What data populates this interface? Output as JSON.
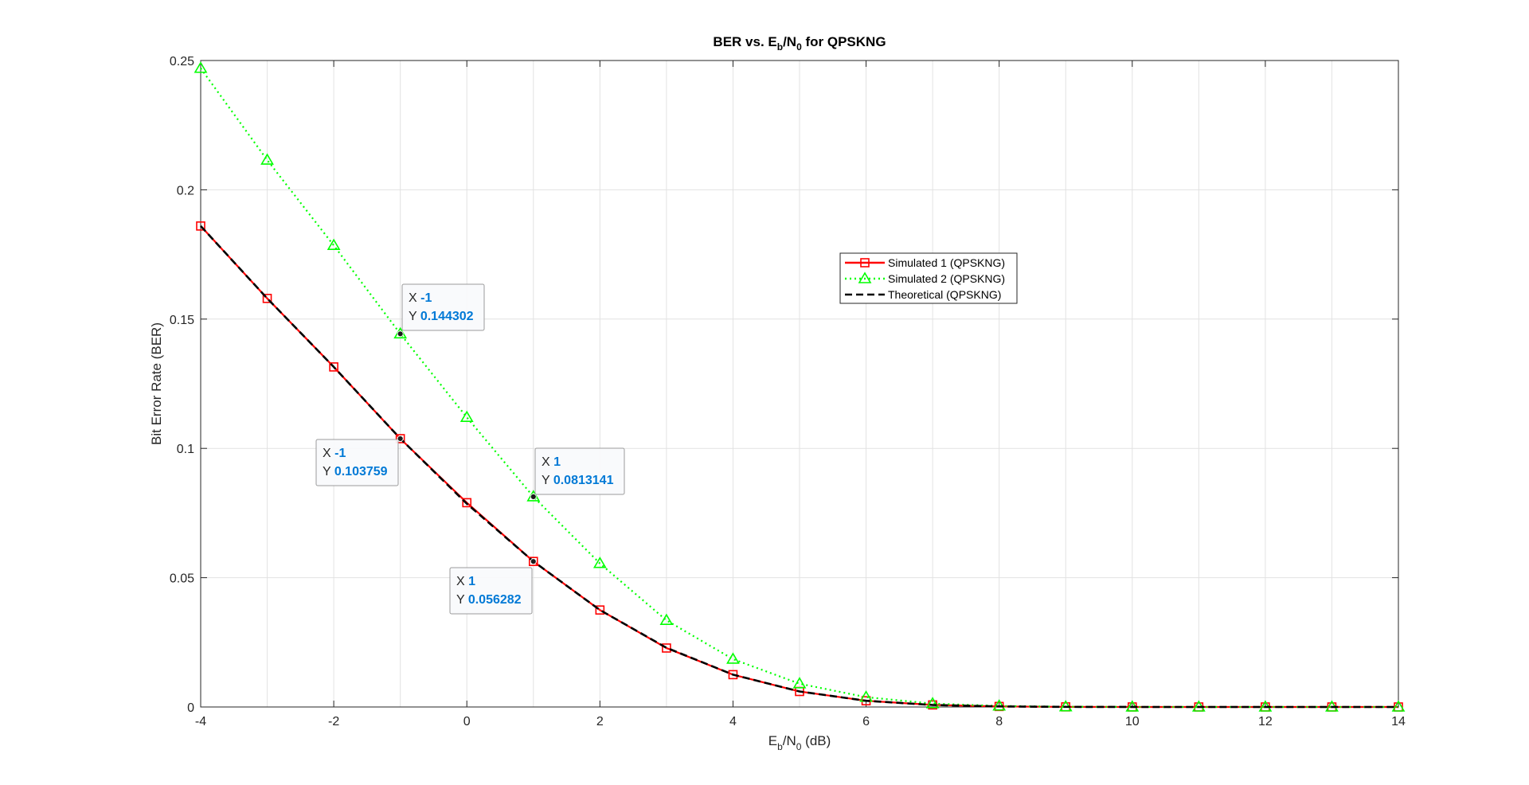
{
  "chart_data": {
    "type": "line",
    "title": {
      "main": "BER vs. E",
      "sub1": "b",
      "mid": "/N",
      "sub2": "0",
      "end": " for QPSKNG"
    },
    "xlabel": {
      "main": "E",
      "sub1": "b",
      "mid": "/N",
      "sub2": "0",
      "end": " (dB)"
    },
    "ylabel": "Bit Error Rate (BER)",
    "xlim": [
      -4,
      14
    ],
    "ylim": [
      0,
      0.25
    ],
    "xticks": [
      -4,
      -2,
      0,
      2,
      4,
      6,
      8,
      10,
      12,
      14
    ],
    "xtick_labels": [
      "-4",
      "-2",
      "0",
      "2",
      "4",
      "6",
      "8",
      "10",
      "12",
      "14"
    ],
    "yticks": [
      0,
      0.05,
      0.1,
      0.15,
      0.2,
      0.25
    ],
    "ytick_labels": [
      "0",
      "0.05",
      "0.1",
      "0.15",
      "0.2",
      "0.25"
    ],
    "grid": true,
    "legend_position": "right-center",
    "x": [
      -4,
      -3,
      -2,
      -1,
      0,
      1,
      2,
      3,
      4,
      5,
      6,
      7,
      8,
      9,
      10,
      11,
      12,
      13,
      14
    ],
    "series": [
      {
        "name": "Simulated 1 (QPSKNG)",
        "color": "#ff0000",
        "line_style": "solid",
        "marker": "square",
        "values": [
          0.186,
          0.158,
          0.1315,
          0.103759,
          0.079,
          0.056282,
          0.0375,
          0.0228,
          0.0125,
          0.006,
          0.0024,
          0.0008,
          0.0002,
          4e-05,
          1e-05,
          0,
          0,
          0,
          0
        ]
      },
      {
        "name": "Simulated 2 (QPSKNG)",
        "color": "#00ff00",
        "line_style": "dotted",
        "marker": "triangle",
        "values": [
          0.247,
          0.2115,
          0.1785,
          0.144302,
          0.112,
          0.0813141,
          0.0555,
          0.0335,
          0.0185,
          0.009,
          0.0038,
          0.0013,
          0.0004,
          0.0001,
          2e-05,
          0,
          0,
          0,
          0
        ]
      },
      {
        "name": "Theoretical (QPSKNG)",
        "color": "#000000",
        "line_style": "dashed",
        "marker": "none",
        "values": [
          0.186,
          0.158,
          0.1315,
          0.1038,
          0.0786,
          0.0563,
          0.0375,
          0.0229,
          0.0125,
          0.006,
          0.0024,
          0.00077,
          0.0002,
          4e-05,
          4e-06,
          0,
          0,
          0,
          0
        ]
      }
    ],
    "datatips": [
      {
        "x": -1,
        "y": 0.144302,
        "x_label": "X",
        "y_label": "Y",
        "x_value": "-1",
        "y_value": "0.144302"
      },
      {
        "x": -1,
        "y": 0.103759,
        "x_label": "X",
        "y_label": "Y",
        "x_value": "-1",
        "y_value": "0.103759"
      },
      {
        "x": 1,
        "y": 0.0813141,
        "x_label": "X",
        "y_label": "Y",
        "x_value": "1",
        "y_value": "0.0813141"
      },
      {
        "x": 1,
        "y": 0.056282,
        "x_label": "X",
        "y_label": "Y",
        "x_value": "1",
        "y_value": "0.056282"
      }
    ]
  }
}
